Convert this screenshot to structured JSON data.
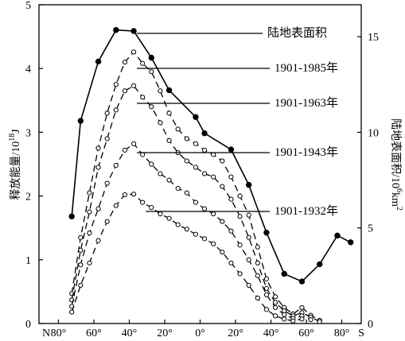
{
  "chart_data": {
    "type": "line",
    "title": "",
    "xlabel": "",
    "ylabel_left": "释放能量/10",
    "ylabel_left_sup": "18",
    "ylabel_left_unit": "J",
    "ylabel_right": "陆地表面积/10",
    "ylabel_right_sup": "6",
    "ylabel_right_unit": "km",
    "ylabel_right_unit_sup": "2",
    "x_end_left": "N",
    "x_end_right": "S",
    "x_ticks": [
      {
        "value": 80,
        "label": "80°"
      },
      {
        "value": 60,
        "label": "60°"
      },
      {
        "value": 40,
        "label": "40°"
      },
      {
        "value": 20,
        "label": "20°"
      },
      {
        "value": 0,
        "label": "0°"
      },
      {
        "value": -20,
        "label": "20°"
      },
      {
        "value": -40,
        "label": "40°"
      },
      {
        "value": -60,
        "label": "60°"
      },
      {
        "value": -80,
        "label": "80°"
      }
    ],
    "xlim": [
      91,
      -91
    ],
    "y_left_ticks": [
      "0",
      "1",
      "2",
      "3",
      "4",
      "5"
    ],
    "ylim_left": [
      0,
      5
    ],
    "y_right_ticks": [
      "0",
      "5",
      "10",
      "15"
    ],
    "ylim_right": [
      0,
      16.67
    ],
    "grid": false,
    "series": [
      {
        "name": "陆地表面积",
        "axis": "right",
        "style": "solid",
        "marker": "filled",
        "points": [
          [
            72.5,
            5.6
          ],
          [
            67.5,
            10.6
          ],
          [
            57.5,
            13.7
          ],
          [
            47.5,
            15.35
          ],
          [
            37.5,
            15.3
          ],
          [
            27.5,
            13.9
          ],
          [
            17.5,
            12.2
          ],
          [
            2.5,
            10.8
          ],
          [
            -2.5,
            9.95
          ],
          [
            -17.5,
            9.1
          ],
          [
            -27.5,
            7.25
          ],
          [
            -37.5,
            4.75
          ],
          [
            -47.5,
            2.6
          ],
          [
            -57.5,
            2.2
          ],
          [
            -67.5,
            3.1
          ],
          [
            -77.5,
            4.6
          ],
          [
            -85,
            4.25
          ]
        ]
      },
      {
        "name": "1901-1985年",
        "axis": "left",
        "style": "dashed",
        "marker": "open",
        "points": [
          [
            72.5,
            0.47
          ],
          [
            67.5,
            1.35
          ],
          [
            62.5,
            2.05
          ],
          [
            57.5,
            2.75
          ],
          [
            52.5,
            3.3
          ],
          [
            47.5,
            3.75
          ],
          [
            42.5,
            4.1
          ],
          [
            37.5,
            4.26
          ],
          [
            32.5,
            4.08
          ],
          [
            27.5,
            3.95
          ],
          [
            22.5,
            3.65
          ],
          [
            17.5,
            3.3
          ],
          [
            12.5,
            3.05
          ],
          [
            7.5,
            2.9
          ],
          [
            2.5,
            2.82
          ],
          [
            -2.5,
            2.72
          ],
          [
            -7.5,
            2.65
          ],
          [
            -12.5,
            2.55
          ],
          [
            -17.5,
            2.3
          ],
          [
            -22.5,
            2.0
          ],
          [
            -27.5,
            1.7
          ],
          [
            -32.5,
            1.2
          ],
          [
            -37.5,
            0.7
          ],
          [
            -42.5,
            0.42
          ],
          [
            -47.5,
            0.25
          ],
          [
            -52.5,
            0.15
          ],
          [
            -57.5,
            0.25
          ],
          [
            -62.5,
            0.13
          ],
          [
            -67.5,
            0.05
          ]
        ]
      },
      {
        "name": "1901-1963年",
        "axis": "left",
        "style": "dashed",
        "marker": "open",
        "points": [
          [
            72.5,
            0.37
          ],
          [
            67.5,
            1.15
          ],
          [
            62.5,
            1.75
          ],
          [
            57.5,
            2.45
          ],
          [
            52.5,
            2.9
          ],
          [
            47.5,
            3.35
          ],
          [
            42.5,
            3.65
          ],
          [
            37.5,
            3.73
          ],
          [
            32.5,
            3.55
          ],
          [
            27.5,
            3.4
          ],
          [
            22.5,
            3.15
          ],
          [
            17.5,
            2.87
          ],
          [
            12.5,
            2.68
          ],
          [
            7.5,
            2.55
          ],
          [
            2.5,
            2.45
          ],
          [
            -2.5,
            2.35
          ],
          [
            -7.5,
            2.3
          ],
          [
            -12.5,
            2.15
          ],
          [
            -17.5,
            1.95
          ],
          [
            -22.5,
            1.68
          ],
          [
            -27.5,
            1.35
          ],
          [
            -32.5,
            0.95
          ],
          [
            -37.5,
            0.55
          ],
          [
            -42.5,
            0.33
          ],
          [
            -47.5,
            0.2
          ],
          [
            -52.5,
            0.12
          ],
          [
            -57.5,
            0.17
          ],
          [
            -62.5,
            0.1
          ],
          [
            -67.5,
            0.03
          ]
        ]
      },
      {
        "name": "1901-1943年",
        "axis": "left",
        "style": "dashed",
        "marker": "open",
        "points": [
          [
            72.5,
            0.27
          ],
          [
            67.5,
            0.92
          ],
          [
            62.5,
            1.42
          ],
          [
            57.5,
            1.8
          ],
          [
            52.5,
            2.2
          ],
          [
            47.5,
            2.48
          ],
          [
            42.5,
            2.72
          ],
          [
            37.5,
            2.82
          ],
          [
            32.5,
            2.65
          ],
          [
            27.5,
            2.5
          ],
          [
            22.5,
            2.35
          ],
          [
            17.5,
            2.25
          ],
          [
            12.5,
            2.12
          ],
          [
            7.5,
            2.05
          ],
          [
            2.5,
            1.9
          ],
          [
            -2.5,
            1.8
          ],
          [
            -7.5,
            1.72
          ],
          [
            -12.5,
            1.6
          ],
          [
            -17.5,
            1.45
          ],
          [
            -22.5,
            1.23
          ],
          [
            -27.5,
            1.0
          ],
          [
            -32.5,
            0.75
          ],
          [
            -37.5,
            0.45
          ],
          [
            -42.5,
            0.25
          ],
          [
            -47.5,
            0.14
          ],
          [
            -52.5,
            0.08
          ],
          [
            -57.5,
            0.12
          ],
          [
            -62.5,
            0.06
          ]
        ]
      },
      {
        "name": "1901-1932年",
        "axis": "left",
        "style": "dashed",
        "marker": "open",
        "points": [
          [
            72.5,
            0.18
          ],
          [
            67.5,
            0.6
          ],
          [
            62.5,
            0.95
          ],
          [
            57.5,
            1.3
          ],
          [
            52.5,
            1.6
          ],
          [
            47.5,
            1.85
          ],
          [
            42.5,
            2.02
          ],
          [
            37.5,
            2.03
          ],
          [
            32.5,
            1.9
          ],
          [
            27.5,
            1.82
          ],
          [
            22.5,
            1.72
          ],
          [
            17.5,
            1.65
          ],
          [
            12.5,
            1.55
          ],
          [
            7.5,
            1.48
          ],
          [
            2.5,
            1.4
          ],
          [
            -2.5,
            1.33
          ],
          [
            -7.5,
            1.25
          ],
          [
            -12.5,
            1.12
          ],
          [
            -17.5,
            0.95
          ],
          [
            -22.5,
            0.78
          ],
          [
            -27.5,
            0.6
          ],
          [
            -32.5,
            0.4
          ],
          [
            -37.5,
            0.22
          ],
          [
            -42.5,
            0.12
          ],
          [
            -47.5,
            0.07
          ],
          [
            -52.5,
            0.04
          ],
          [
            -57.5,
            0.07
          ]
        ]
      }
    ],
    "annotations": [
      {
        "label": "陆地表面积",
        "series": 0,
        "point": 4
      },
      {
        "label": "1901-1985年",
        "series": 1,
        "point": 7
      },
      {
        "label": "1901-1963年",
        "series": 2,
        "point": 7
      },
      {
        "label": "1901-1943年",
        "series": 3,
        "point": 7
      },
      {
        "label": "1901-1932年",
        "series": 4,
        "point": 8
      }
    ]
  }
}
